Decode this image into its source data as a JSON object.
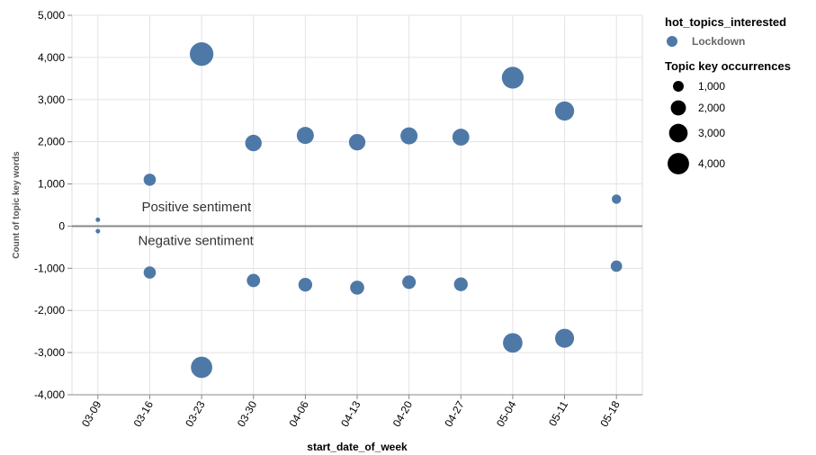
{
  "chart_data": {
    "type": "scatter",
    "xlabel": "start_date_of_week",
    "ylabel": "Count of topic key words",
    "ylim": [
      -4000,
      5000
    ],
    "y_ticks": [
      5000,
      4000,
      3000,
      2000,
      1000,
      0,
      -1000,
      -2000,
      -3000,
      -4000
    ],
    "y_tick_labels": [
      "5,000",
      "4,000",
      "3,000",
      "2,000",
      "1,000",
      "0",
      "-1,000",
      "-2,000",
      "-3,000",
      "-4,000"
    ],
    "categories": [
      "03-09",
      "03-16",
      "03-23",
      "03-30",
      "04-06",
      "04-13",
      "04-20",
      "04-27",
      "05-04",
      "05-11",
      "05-18"
    ],
    "grid": true,
    "color": "#4e79a7",
    "series": [
      {
        "name": "Lockdown",
        "points": [
          {
            "x": "03-09",
            "y": 150,
            "size": 100
          },
          {
            "x": "03-09",
            "y": -120,
            "size": 100
          },
          {
            "x": "03-16",
            "y": 1100,
            "size": 1100
          },
          {
            "x": "03-16",
            "y": -1100,
            "size": 1100
          },
          {
            "x": "03-23",
            "y": 4080,
            "size": 4100
          },
          {
            "x": "03-23",
            "y": -3350,
            "size": 3350
          },
          {
            "x": "03-30",
            "y": 1970,
            "size": 2000
          },
          {
            "x": "03-30",
            "y": -1290,
            "size": 1300
          },
          {
            "x": "04-06",
            "y": 2150,
            "size": 2150
          },
          {
            "x": "04-06",
            "y": -1390,
            "size": 1400
          },
          {
            "x": "04-13",
            "y": 1990,
            "size": 2000
          },
          {
            "x": "04-13",
            "y": -1460,
            "size": 1450
          },
          {
            "x": "04-20",
            "y": 2140,
            "size": 2150
          },
          {
            "x": "04-20",
            "y": -1330,
            "size": 1350
          },
          {
            "x": "04-27",
            "y": 2110,
            "size": 2100
          },
          {
            "x": "04-27",
            "y": -1380,
            "size": 1400
          },
          {
            "x": "05-04",
            "y": 3520,
            "size": 3500
          },
          {
            "x": "05-04",
            "y": -2770,
            "size": 2800
          },
          {
            "x": "05-11",
            "y": 2730,
            "size": 2700
          },
          {
            "x": "05-11",
            "y": -2660,
            "size": 2650
          },
          {
            "x": "05-18",
            "y": 640,
            "size": 640
          },
          {
            "x": "05-18",
            "y": -950,
            "size": 950
          }
        ]
      }
    ],
    "annotations": {
      "positive": "Positive sentiment",
      "negative": "Negative sentiment"
    },
    "legend": {
      "position": "right",
      "color_title": "hot_topics_interested",
      "color_entry": "Lockdown",
      "size_title": "Topic key occurrences",
      "size_entries": [
        {
          "label": "1,000",
          "value": 1000
        },
        {
          "label": "2,000",
          "value": 2000
        },
        {
          "label": "3,000",
          "value": 3000
        },
        {
          "label": "4,000",
          "value": 4000
        }
      ]
    }
  }
}
